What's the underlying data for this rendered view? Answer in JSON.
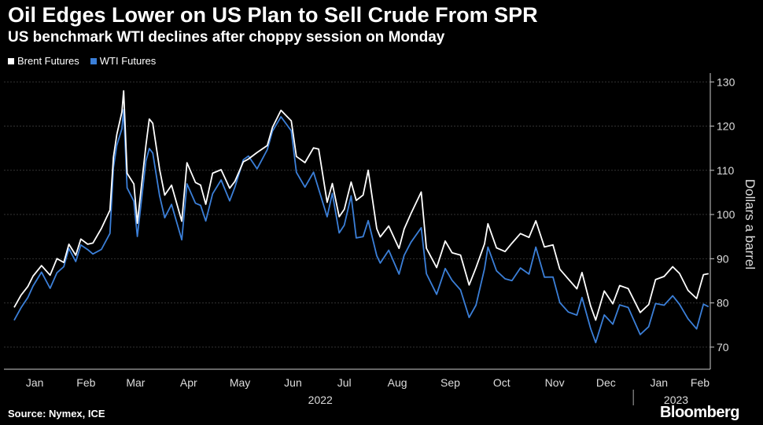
{
  "header": {
    "title": "Oil Edges Lower on US Plan to Sell Crude From SPR",
    "subtitle": "US benchmark WTI declines after choppy session on Monday"
  },
  "footer": {
    "source": "Source: Nymex, ICE",
    "brand": "Bloomberg"
  },
  "colors": {
    "background": "#000000",
    "brent": "#ffffff",
    "wti": "#3b7fd8",
    "grid": "#333333",
    "axis": "#cccccc"
  },
  "chart_data": {
    "type": "line",
    "title": "Oil Edges Lower on US Plan to Sell Crude From SPR",
    "subtitle": "US benchmark WTI declines after choppy session on Monday",
    "ylabel": "Dollars a barrel",
    "xlabel": "",
    "ylim": [
      65,
      132
    ],
    "yticks": [
      70,
      80,
      90,
      100,
      110,
      120,
      130
    ],
    "xlim": [
      "2021-12-28",
      "2023-02-14"
    ],
    "y_axis_position": "right",
    "grid": true,
    "legend_position": "top-left",
    "month_ticks": [
      {
        "label": "Jan",
        "date": "2022-01-15"
      },
      {
        "label": "Feb",
        "date": "2022-02-14"
      },
      {
        "label": "Mar",
        "date": "2022-03-15"
      },
      {
        "label": "Apr",
        "date": "2022-04-15"
      },
      {
        "label": "May",
        "date": "2022-05-15"
      },
      {
        "label": "Jun",
        "date": "2022-06-15"
      },
      {
        "label": "Jul",
        "date": "2022-07-15"
      },
      {
        "label": "Aug",
        "date": "2022-08-15"
      },
      {
        "label": "Sep",
        "date": "2022-09-15"
      },
      {
        "label": "Oct",
        "date": "2022-10-15"
      },
      {
        "label": "Nov",
        "date": "2022-11-15"
      },
      {
        "label": "Dec",
        "date": "2022-12-15"
      },
      {
        "label": "Jan",
        "date": "2023-01-15"
      },
      {
        "label": "Feb",
        "date": "2023-02-08"
      }
    ],
    "year_labels": [
      {
        "label": "2022",
        "date": "2022-07-01"
      },
      {
        "label": "2023",
        "date": "2023-01-25"
      }
    ],
    "year_divider_date": "2022-12-31",
    "series": [
      {
        "name": "Brent Futures",
        "color": "#ffffff",
        "points": [
          [
            "2022-01-03",
            78.98
          ],
          [
            "2022-01-07",
            81.75
          ],
          [
            "2022-01-11",
            83.72
          ],
          [
            "2022-01-14",
            86.06
          ],
          [
            "2022-01-19",
            88.44
          ],
          [
            "2022-01-24",
            86.27
          ],
          [
            "2022-01-28",
            90.03
          ],
          [
            "2022-02-01",
            89.16
          ],
          [
            "2022-02-04",
            93.27
          ],
          [
            "2022-02-08",
            90.78
          ],
          [
            "2022-02-11",
            94.44
          ],
          [
            "2022-02-15",
            93.28
          ],
          [
            "2022-02-18",
            93.54
          ],
          [
            "2022-02-23",
            96.84
          ],
          [
            "2022-02-28",
            100.99
          ],
          [
            "2022-03-02",
            112.93
          ],
          [
            "2022-03-04",
            118.11
          ],
          [
            "2022-03-07",
            123.21
          ],
          [
            "2022-03-08",
            127.98
          ],
          [
            "2022-03-10",
            109.33
          ],
          [
            "2022-03-14",
            106.9
          ],
          [
            "2022-03-16",
            98.02
          ],
          [
            "2022-03-21",
            115.62
          ],
          [
            "2022-03-23",
            121.6
          ],
          [
            "2022-03-25",
            120.65
          ],
          [
            "2022-03-29",
            110.23
          ],
          [
            "2022-04-01",
            104.39
          ],
          [
            "2022-04-05",
            106.64
          ],
          [
            "2022-04-11",
            98.48
          ],
          [
            "2022-04-14",
            111.7
          ],
          [
            "2022-04-19",
            107.25
          ],
          [
            "2022-04-22",
            106.65
          ],
          [
            "2022-04-25",
            102.32
          ],
          [
            "2022-04-29",
            109.34
          ],
          [
            "2022-05-04",
            110.14
          ],
          [
            "2022-05-09",
            105.94
          ],
          [
            "2022-05-12",
            107.45
          ],
          [
            "2022-05-17",
            111.93
          ],
          [
            "2022-05-20",
            112.55
          ],
          [
            "2022-05-25",
            114.03
          ],
          [
            "2022-05-31",
            115.6
          ],
          [
            "2022-06-03",
            119.72
          ],
          [
            "2022-06-08",
            123.58
          ],
          [
            "2022-06-14",
            121.17
          ],
          [
            "2022-06-17",
            113.12
          ],
          [
            "2022-06-22",
            111.74
          ],
          [
            "2022-06-27",
            115.09
          ],
          [
            "2022-06-30",
            114.81
          ],
          [
            "2022-07-05",
            102.77
          ],
          [
            "2022-07-08",
            107.02
          ],
          [
            "2022-07-12",
            99.49
          ],
          [
            "2022-07-15",
            101.16
          ],
          [
            "2022-07-19",
            107.35
          ],
          [
            "2022-07-22",
            103.2
          ],
          [
            "2022-07-26",
            104.4
          ],
          [
            "2022-07-29",
            110.01
          ],
          [
            "2022-08-03",
            96.78
          ],
          [
            "2022-08-05",
            94.92
          ],
          [
            "2022-08-10",
            97.4
          ],
          [
            "2022-08-16",
            92.34
          ],
          [
            "2022-08-19",
            96.72
          ],
          [
            "2022-08-23",
            100.22
          ],
          [
            "2022-08-29",
            105.09
          ],
          [
            "2022-09-01",
            92.36
          ],
          [
            "2022-09-07",
            88.0
          ],
          [
            "2022-09-12",
            94.0
          ],
          [
            "2022-09-16",
            91.35
          ],
          [
            "2022-09-21",
            90.83
          ],
          [
            "2022-09-26",
            84.06
          ],
          [
            "2022-09-30",
            87.96
          ],
          [
            "2022-10-05",
            93.37
          ],
          [
            "2022-10-07",
            97.92
          ],
          [
            "2022-10-12",
            92.45
          ],
          [
            "2022-10-17",
            91.62
          ],
          [
            "2022-10-21",
            93.5
          ],
          [
            "2022-10-26",
            95.69
          ],
          [
            "2022-10-31",
            94.83
          ],
          [
            "2022-11-04",
            98.57
          ],
          [
            "2022-11-09",
            92.65
          ],
          [
            "2022-11-14",
            93.14
          ],
          [
            "2022-11-18",
            87.62
          ],
          [
            "2022-11-23",
            85.41
          ],
          [
            "2022-11-28",
            83.19
          ],
          [
            "2022-12-01",
            86.88
          ],
          [
            "2022-12-06",
            79.35
          ],
          [
            "2022-12-09",
            76.1
          ],
          [
            "2022-12-14",
            82.7
          ],
          [
            "2022-12-19",
            79.8
          ],
          [
            "2022-12-23",
            83.92
          ],
          [
            "2022-12-28",
            83.26
          ],
          [
            "2023-01-04",
            77.84
          ],
          [
            "2023-01-09",
            79.65
          ],
          [
            "2023-01-13",
            85.28
          ],
          [
            "2023-01-18",
            85.98
          ],
          [
            "2023-01-23",
            88.19
          ],
          [
            "2023-01-27",
            86.66
          ],
          [
            "2023-02-01",
            82.84
          ],
          [
            "2023-02-06",
            80.99
          ],
          [
            "2023-02-10",
            86.39
          ],
          [
            "2023-02-13",
            86.61
          ]
        ]
      },
      {
        "name": "WTI Futures",
        "color": "#3b7fd8",
        "points": [
          [
            "2022-01-03",
            76.08
          ],
          [
            "2022-01-07",
            78.9
          ],
          [
            "2022-01-11",
            81.22
          ],
          [
            "2022-01-14",
            83.82
          ],
          [
            "2022-01-19",
            86.96
          ],
          [
            "2022-01-24",
            83.31
          ],
          [
            "2022-01-28",
            86.82
          ],
          [
            "2022-02-01",
            88.2
          ],
          [
            "2022-02-04",
            92.31
          ],
          [
            "2022-02-08",
            89.36
          ],
          [
            "2022-02-11",
            93.1
          ],
          [
            "2022-02-15",
            92.07
          ],
          [
            "2022-02-18",
            91.07
          ],
          [
            "2022-02-23",
            92.1
          ],
          [
            "2022-02-28",
            95.72
          ],
          [
            "2022-03-02",
            110.6
          ],
          [
            "2022-03-04",
            115.68
          ],
          [
            "2022-03-07",
            119.4
          ],
          [
            "2022-03-08",
            123.7
          ],
          [
            "2022-03-10",
            106.02
          ],
          [
            "2022-03-14",
            103.01
          ],
          [
            "2022-03-16",
            95.04
          ],
          [
            "2022-03-21",
            112.12
          ],
          [
            "2022-03-23",
            114.93
          ],
          [
            "2022-03-25",
            113.9
          ],
          [
            "2022-03-29",
            104.24
          ],
          [
            "2022-04-01",
            99.27
          ],
          [
            "2022-04-05",
            102.28
          ],
          [
            "2022-04-11",
            94.29
          ],
          [
            "2022-04-14",
            106.95
          ],
          [
            "2022-04-19",
            102.56
          ],
          [
            "2022-04-22",
            102.07
          ],
          [
            "2022-04-25",
            98.54
          ],
          [
            "2022-04-29",
            104.69
          ],
          [
            "2022-05-04",
            107.81
          ],
          [
            "2022-05-09",
            103.09
          ],
          [
            "2022-05-12",
            106.13
          ],
          [
            "2022-05-17",
            112.4
          ],
          [
            "2022-05-20",
            113.23
          ],
          [
            "2022-05-25",
            110.33
          ],
          [
            "2022-05-31",
            114.67
          ],
          [
            "2022-06-03",
            118.87
          ],
          [
            "2022-06-08",
            122.11
          ],
          [
            "2022-06-14",
            118.93
          ],
          [
            "2022-06-17",
            109.56
          ],
          [
            "2022-06-22",
            106.19
          ],
          [
            "2022-06-27",
            109.57
          ],
          [
            "2022-06-30",
            105.76
          ],
          [
            "2022-07-05",
            99.5
          ],
          [
            "2022-07-08",
            104.79
          ],
          [
            "2022-07-12",
            95.84
          ],
          [
            "2022-07-15",
            97.59
          ],
          [
            "2022-07-19",
            104.22
          ],
          [
            "2022-07-22",
            94.7
          ],
          [
            "2022-07-26",
            94.98
          ],
          [
            "2022-07-29",
            98.62
          ],
          [
            "2022-08-03",
            90.66
          ],
          [
            "2022-08-05",
            89.01
          ],
          [
            "2022-08-10",
            91.93
          ],
          [
            "2022-08-16",
            86.53
          ],
          [
            "2022-08-19",
            90.77
          ],
          [
            "2022-08-23",
            93.74
          ],
          [
            "2022-08-29",
            97.01
          ],
          [
            "2022-09-01",
            86.61
          ],
          [
            "2022-09-07",
            81.94
          ],
          [
            "2022-09-12",
            87.78
          ],
          [
            "2022-09-16",
            85.11
          ],
          [
            "2022-09-21",
            82.94
          ],
          [
            "2022-09-26",
            76.71
          ],
          [
            "2022-09-30",
            79.49
          ],
          [
            "2022-10-05",
            87.76
          ],
          [
            "2022-10-07",
            92.64
          ],
          [
            "2022-10-12",
            87.27
          ],
          [
            "2022-10-17",
            85.46
          ],
          [
            "2022-10-21",
            85.05
          ],
          [
            "2022-10-26",
            87.91
          ],
          [
            "2022-10-31",
            86.53
          ],
          [
            "2022-11-04",
            92.61
          ],
          [
            "2022-11-09",
            85.83
          ],
          [
            "2022-11-14",
            85.87
          ],
          [
            "2022-11-18",
            80.08
          ],
          [
            "2022-11-23",
            77.94
          ],
          [
            "2022-11-28",
            77.24
          ],
          [
            "2022-12-01",
            81.22
          ],
          [
            "2022-12-06",
            74.25
          ],
          [
            "2022-12-09",
            71.02
          ],
          [
            "2022-12-14",
            77.28
          ],
          [
            "2022-12-19",
            75.19
          ],
          [
            "2022-12-23",
            79.56
          ],
          [
            "2022-12-28",
            78.96
          ],
          [
            "2023-01-04",
            72.84
          ],
          [
            "2023-01-09",
            74.63
          ],
          [
            "2023-01-13",
            79.86
          ],
          [
            "2023-01-18",
            79.48
          ],
          [
            "2023-01-23",
            81.62
          ],
          [
            "2023-01-27",
            79.68
          ],
          [
            "2023-02-01",
            76.41
          ],
          [
            "2023-02-06",
            74.11
          ],
          [
            "2023-02-10",
            79.72
          ],
          [
            "2023-02-13",
            79.14
          ]
        ]
      }
    ]
  }
}
